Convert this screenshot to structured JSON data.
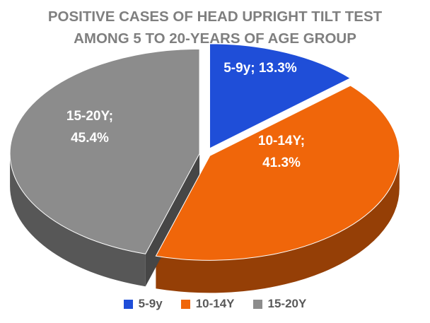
{
  "chart_data": {
    "type": "pie",
    "title_lines": [
      "POSITIVE CASES OF HEAD UPRIGHT TILT TEST",
      "AMONG 5 TO 20-YEARS OF AGE GROUP"
    ],
    "slices": [
      {
        "label": "5-9y",
        "value": 13.3,
        "label_lines": [
          "5-9y; 13.3%"
        ],
        "color": "#1f4ed8"
      },
      {
        "label": "10-14Y",
        "value": 41.3,
        "label_lines": [
          "10-14Y;",
          "41.3%"
        ],
        "color": "#f0660a"
      },
      {
        "label": "15-20Y",
        "value": 45.4,
        "label_lines": [
          "15-20Y;",
          "45.4%"
        ],
        "color": "#8c8c8c"
      }
    ],
    "legend": [
      "5-9y",
      "10-14Y",
      "15-20Y"
    ],
    "legend_position": "bottom",
    "style": "3d-exploded"
  }
}
